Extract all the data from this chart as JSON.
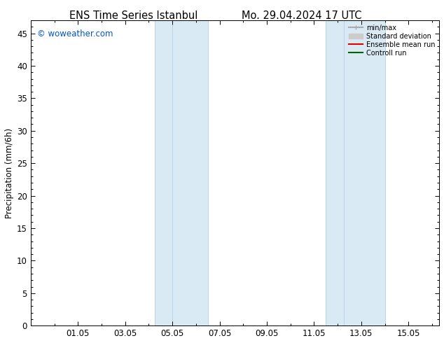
{
  "title_left": "ENS Time Series Istanbul",
  "title_right": "Mo. 29.04.2024 17 UTC",
  "ylabel": "Precipitation (mm/6h)",
  "watermark": "© woweather.com",
  "watermark_color": "#0055cc",
  "background_color": "#ffffff",
  "plot_bg_color": "#ffffff",
  "ylim": [
    0,
    47
  ],
  "yticks": [
    0,
    5,
    10,
    15,
    20,
    25,
    30,
    35,
    40,
    45
  ],
  "xtick_labels": [
    "01.05",
    "03.05",
    "05.05",
    "07.05",
    "09.05",
    "11.05",
    "13.05",
    "15.05"
  ],
  "xtick_positions": [
    0,
    2,
    4,
    6,
    8,
    10,
    12,
    14
  ],
  "x_min": -2.0,
  "x_max": 15.3,
  "shade_color": "#daeaf5",
  "shade_line_color": "#b8d4ea",
  "shade_bands": [
    [
      3.25,
      4.0
    ],
    [
      4.0,
      5.5
    ],
    [
      10.5,
      11.25
    ],
    [
      11.25,
      13.0
    ]
  ],
  "legend_entries": [
    {
      "label": "min/max",
      "color": "#aaaaaa",
      "lw": 1.5
    },
    {
      "label": "Standard deviation",
      "color": "#cccccc",
      "lw": 6
    },
    {
      "label": "Ensemble mean run",
      "color": "#dd0000",
      "lw": 1.5
    },
    {
      "label": "Controll run",
      "color": "#006600",
      "lw": 1.5
    }
  ],
  "grid_color": "#dddddd",
  "font_size": 8.5,
  "title_font_size": 10.5
}
